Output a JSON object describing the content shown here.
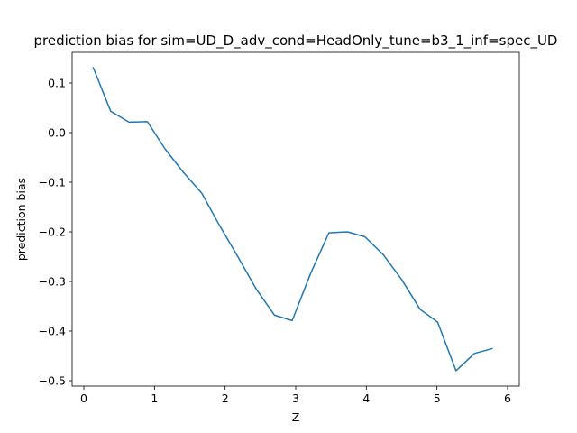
{
  "chart_data": {
    "type": "line",
    "title": "prediction bias for sim=UD_D_adv_cond=HeadOnly_tune=b3_1_inf=spec_UD",
    "xlabel": "Z",
    "ylabel": "prediction bias",
    "xlim": [
      -0.0,
      6.15
    ],
    "ylim": [
      -0.51,
      0.16
    ],
    "xticks": [
      0,
      1,
      2,
      3,
      4,
      5,
      6
    ],
    "yticks": [
      -0.5,
      -0.4,
      -0.3,
      -0.2,
      -0.1,
      0.0,
      0.1
    ],
    "ytick_labels": [
      "−0.5",
      "−0.4",
      "−0.3",
      "−0.2",
      "−0.1",
      "0.0",
      "0.1"
    ],
    "grid": false,
    "series": [
      {
        "color": "#1f77b4",
        "x": [
          0.13,
          0.38,
          0.64,
          0.9,
          1.15,
          1.41,
          1.67,
          1.92,
          2.18,
          2.44,
          2.7,
          2.95,
          3.21,
          3.47,
          3.73,
          3.98,
          4.24,
          4.5,
          4.76,
          5.01,
          5.27,
          5.53,
          5.79
        ],
        "y": [
          0.132,
          0.043,
          0.021,
          0.022,
          -0.033,
          -0.08,
          -0.122,
          -0.187,
          -0.25,
          -0.315,
          -0.368,
          -0.379,
          -0.284,
          -0.202,
          -0.2,
          -0.21,
          -0.246,
          -0.296,
          -0.356,
          -0.382,
          -0.48,
          -0.445,
          -0.435
        ]
      }
    ]
  }
}
